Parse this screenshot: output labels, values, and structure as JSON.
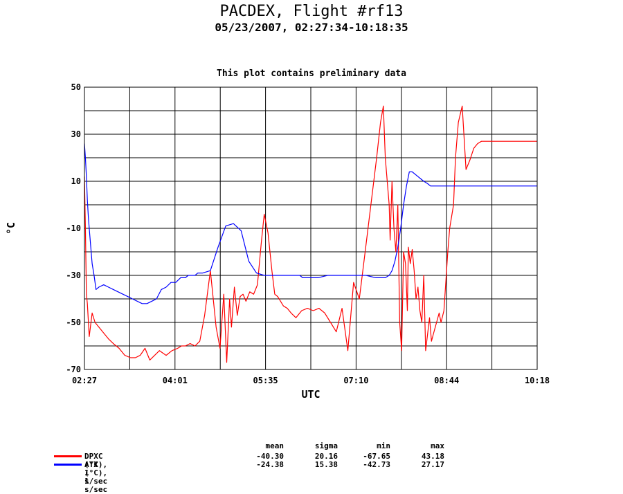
{
  "header": {
    "title": "PACDEX, Flight #rf13",
    "subtitle": "05/23/2007, 02:27:34-10:18:35",
    "note": "This plot contains preliminary data"
  },
  "chart_data": {
    "type": "line",
    "xlabel": "UTC",
    "ylabel": "°C",
    "xlim_minutes": [
      147,
      618
    ],
    "ylim": [
      -70,
      50
    ],
    "yticks": [
      50,
      30,
      10,
      -10,
      -30,
      -50,
      -70
    ],
    "xtick_labels": [
      "02:27",
      "04:01",
      "05:35",
      "07:10",
      "08:44",
      "10:18"
    ],
    "grid": true,
    "series": [
      {
        "name": "DPXC (°C), 1 s/sec",
        "color": "#ff0000",
        "x_utc": [
          "02:27",
          "02:28",
          "02:29",
          "02:30",
          "02:32",
          "02:35",
          "02:38",
          "02:42",
          "02:46",
          "02:52",
          "02:57",
          "03:03",
          "03:09",
          "03:15",
          "03:20",
          "03:25",
          "03:30",
          "03:35",
          "03:40",
          "03:45",
          "03:52",
          "03:58",
          "04:04",
          "04:08",
          "04:12",
          "04:17",
          "04:22",
          "04:27",
          "04:32",
          "04:38",
          "04:44",
          "04:48",
          "04:52",
          "04:55",
          "04:58",
          "05:00",
          "05:03",
          "05:06",
          "05:09",
          "05:12",
          "05:15",
          "05:19",
          "05:23",
          "05:27",
          "05:31",
          "05:34",
          "05:38",
          "05:42",
          "05:45",
          "05:48",
          "05:51",
          "05:54",
          "05:58",
          "06:02",
          "06:07",
          "06:13",
          "06:19",
          "06:25",
          "06:31",
          "06:37",
          "06:43",
          "06:49",
          "06:55",
          "07:01",
          "07:07",
          "07:13",
          "07:19",
          "07:25",
          "07:31",
          "07:35",
          "07:38",
          "07:40",
          "07:42",
          "07:44",
          "07:45",
          "07:47",
          "07:49",
          "07:51",
          "07:53",
          "07:55",
          "07:57",
          "07:59",
          "08:01",
          "08:03",
          "08:04",
          "08:06",
          "08:08",
          "08:10",
          "08:12",
          "08:14",
          "08:16",
          "08:18",
          "08:20",
          "08:22",
          "08:24",
          "08:26",
          "08:28",
          "08:30",
          "08:32",
          "08:34",
          "08:36",
          "08:38",
          "08:41",
          "08:45",
          "08:47",
          "08:49",
          "08:51",
          "08:53",
          "08:56",
          "09:00",
          "09:04",
          "09:08",
          "09:12",
          "09:16",
          "09:20",
          "09:24",
          "09:28",
          "09:32",
          "09:36",
          "09:38",
          "09:40",
          "09:42",
          "09:44",
          "09:46",
          "09:48",
          "09:50",
          "09:52",
          "09:54",
          "09:56",
          "09:58",
          "10:00",
          "10:02",
          "10:04",
          "10:06",
          "10:08",
          "10:10",
          "10:12",
          "10:14",
          "10:16",
          "10:17",
          "10:18"
        ],
        "values": [
          12,
          -10,
          -38,
          -42,
          -56,
          -46,
          -50,
          -52,
          -54,
          -57,
          -59,
          -61,
          -64,
          -65,
          -65,
          -64,
          -61,
          -66,
          -64,
          -62,
          -64,
          -62,
          -61,
          -60,
          -60,
          -59,
          -60,
          -58,
          -47,
          -28,
          -52,
          -61,
          -38,
          -67,
          -40,
          -52,
          -35,
          -47,
          -39,
          -38,
          -41,
          -37,
          -38,
          -34,
          -16,
          -4,
          -12,
          -28,
          -38,
          -39,
          -41,
          -43,
          -44,
          -46,
          -48,
          -45,
          -44,
          -45,
          -44,
          -46,
          -50,
          -54,
          -44,
          -62,
          -33,
          -40,
          -20,
          0,
          20,
          35,
          42,
          20,
          10,
          0,
          -15,
          10,
          -10,
          -20,
          0,
          -50,
          -62,
          -20,
          -25,
          -45,
          -18,
          -25,
          -19,
          -28,
          -40,
          -35,
          -45,
          -50,
          -30,
          -62,
          -55,
          -48,
          -58,
          -55,
          -52,
          -49,
          -46,
          -50,
          -45,
          -20,
          -10,
          -5,
          0,
          20,
          35,
          42,
          15,
          19,
          24,
          26,
          27,
          27,
          27,
          27,
          27,
          27,
          27,
          27,
          27,
          27,
          27,
          27,
          27,
          27,
          27,
          27,
          27,
          27,
          27,
          27,
          27,
          27,
          27,
          27,
          27,
          27,
          27
        ]
      },
      {
        "name": "ATX (°C), 1 s/sec",
        "color": "#0000ff",
        "x_utc": [
          "02:27",
          "02:28",
          "02:29",
          "02:30",
          "02:31",
          "02:32",
          "02:33",
          "02:34",
          "02:35",
          "02:37",
          "02:39",
          "02:42",
          "02:47",
          "02:52",
          "02:57",
          "03:02",
          "03:07",
          "03:12",
          "03:17",
          "03:22",
          "03:27",
          "03:32",
          "03:37",
          "03:42",
          "03:47",
          "03:52",
          "03:57",
          "04:02",
          "04:07",
          "04:12",
          "04:15",
          "04:18",
          "04:20",
          "04:22",
          "04:25",
          "04:30",
          "04:38",
          "04:46",
          "04:54",
          "05:02",
          "05:10",
          "05:18",
          "05:26",
          "05:34",
          "05:40",
          "05:45",
          "05:49",
          "05:53",
          "05:56",
          "05:59",
          "06:02",
          "06:05",
          "06:08",
          "06:11",
          "06:14",
          "06:20",
          "06:30",
          "06:40",
          "06:50",
          "07:00",
          "07:10",
          "07:20",
          "07:30",
          "07:40",
          "07:44",
          "07:47",
          "07:50",
          "07:53",
          "07:56",
          "07:59",
          "08:02",
          "08:05",
          "08:08",
          "08:11",
          "08:14",
          "08:17",
          "08:20",
          "08:24",
          "08:27",
          "08:30",
          "08:33",
          "08:36",
          "08:40",
          "08:44",
          "08:48",
          "08:50",
          "08:52",
          "08:54",
          "08:56",
          "08:58",
          "09:02",
          "09:08",
          "09:14",
          "09:20",
          "09:26",
          "09:32",
          "09:38",
          "09:44",
          "09:50",
          "09:56",
          "10:02",
          "10:06",
          "10:10",
          "10:14",
          "10:16",
          "10:18"
        ],
        "values": [
          26,
          20,
          12,
          2,
          -5,
          -10,
          -15,
          -20,
          -25,
          -30,
          -36,
          -35,
          -34,
          -35,
          -36,
          -37,
          -38,
          -39,
          -40,
          -41,
          -42,
          -42,
          -41,
          -40,
          -36,
          -35,
          -33,
          -33,
          -31,
          -31,
          -30,
          -30,
          -30,
          -30,
          -29,
          -29,
          -28,
          -18,
          -9,
          -8,
          -11,
          -24,
          -29,
          -30,
          -30,
          -30,
          -30,
          -30,
          -30,
          -30,
          -30,
          -30,
          -30,
          -30,
          -31,
          -31,
          -31,
          -30,
          -30,
          -30,
          -30,
          -30,
          -31,
          -31,
          -30,
          -28,
          -24,
          -18,
          -10,
          0,
          8,
          14,
          14,
          13,
          12,
          11,
          10,
          9,
          8,
          8,
          8,
          8,
          8,
          8,
          8,
          8,
          8,
          8,
          8,
          8,
          8,
          8,
          8,
          8,
          8,
          8,
          8,
          8,
          8,
          8,
          8,
          8,
          8,
          8,
          8,
          8
        ]
      }
    ]
  },
  "stats": {
    "headers": [
      "mean",
      "sigma",
      "min",
      "max"
    ],
    "rows": [
      {
        "label": "DPXC (°C), 1 s/sec",
        "color": "#ff0000",
        "mean": "-40.30",
        "sigma": "20.16",
        "min": "-67.65",
        "max": "43.18"
      },
      {
        "label": "ATX (°C), 1 s/sec",
        "color": "#0000ff",
        "mean": "-24.38",
        "sigma": "15.38",
        "min": "-42.73",
        "max": "27.17"
      }
    ]
  }
}
